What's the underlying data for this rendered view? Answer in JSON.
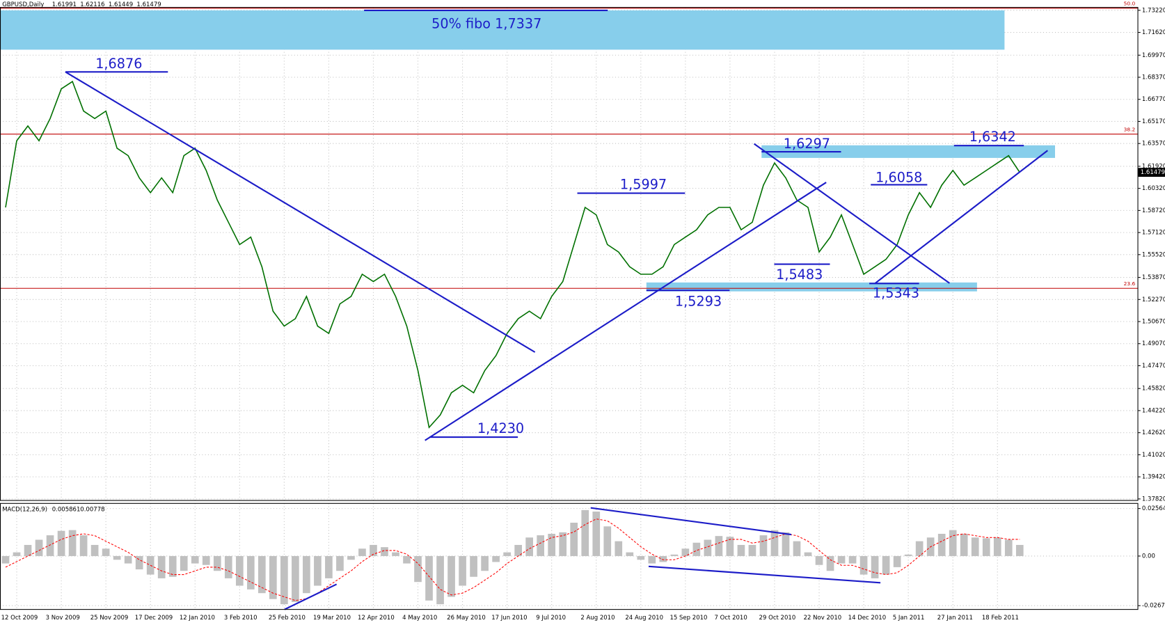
{
  "header": {
    "symbol": "GBPUSD,Daily",
    "ohlc": [
      1.61991,
      1.62116,
      1.61449,
      1.61479
    ]
  },
  "chart_data": [
    {
      "type": "line",
      "categories": [
        null,
        "12 Oct 2009",
        null,
        null,
        null,
        "3 Nov 2009",
        null,
        null,
        null,
        "25 Nov 2009",
        null,
        null,
        null,
        "17 Dec 2009",
        null,
        null,
        null,
        "12 Jan 2010",
        null,
        null,
        null,
        "3 Feb 2010",
        null,
        null,
        null,
        "25 Feb 2010",
        null,
        null,
        null,
        "19 Mar 2010",
        null,
        null,
        null,
        "12 Apr 2010",
        null,
        null,
        null,
        "4 May 2010",
        null,
        null,
        null,
        "26 May 2010",
        null,
        null,
        null,
        "17 Jun 2010",
        null,
        null,
        null,
        "9 Jul 2010",
        null,
        null,
        null,
        "2 Aug 2010",
        null,
        null,
        null,
        "24 Aug 2010",
        null,
        null,
        null,
        "15 Sep 2010",
        null,
        null,
        null,
        "7 Oct 2010",
        null,
        null,
        null,
        "29 Oct 2010",
        null,
        null,
        null,
        "22 Nov 2010",
        null,
        null,
        null,
        "14 Dec 2010",
        null,
        null,
        null,
        "5 Jan 2011",
        null,
        null,
        null,
        "27 Jan 2011",
        null,
        null,
        null,
        "18 Feb 2011",
        null,
        null
      ],
      "values": [
        1.5894,
        1.6377,
        1.6484,
        1.6377,
        1.6538,
        1.6753,
        1.6806,
        1.6592,
        1.6538,
        1.6592,
        1.6323,
        1.6269,
        1.6108,
        1.6001,
        1.6108,
        1.6001,
        1.6269,
        1.6323,
        1.6162,
        1.5947,
        1.5786,
        1.5625,
        1.5679,
        1.5464,
        1.5142,
        1.5034,
        1.5088,
        1.5249,
        1.5034,
        1.4981,
        1.5195,
        1.5249,
        1.541,
        1.5357,
        1.541,
        1.5249,
        1.5034,
        1.4712,
        1.43,
        1.439,
        1.4551,
        1.4605,
        1.4551,
        1.4712,
        1.482,
        1.4981,
        1.5088,
        1.5142,
        1.5088,
        1.5249,
        1.5357,
        1.5625,
        1.5894,
        1.584,
        1.5625,
        1.5571,
        1.5464,
        1.541,
        1.541,
        1.5464,
        1.5625,
        1.5679,
        1.5732,
        1.584,
        1.5894,
        1.5894,
        1.5732,
        1.5786,
        1.6055,
        1.6216,
        1.6108,
        1.5947,
        1.5894,
        1.5571,
        1.5679,
        1.584,
        1.5625,
        1.541,
        1.5464,
        1.5518,
        1.5625,
        1.584,
        1.6001,
        1.5894,
        1.6055,
        1.6162,
        1.6055,
        1.6108,
        1.6162,
        1.6216,
        1.6269,
        1.6148
      ],
      "color": "#007000",
      "ylim": [
        1.3771,
        1.7343
      ],
      "yticks": [
        {
          "value": 1.7322,
          "label": "1.73220"
        },
        {
          "value": 1.7162,
          "label": "1.71620"
        },
        {
          "value": 1.6997,
          "label": "1.69970"
        },
        {
          "value": 1.6837,
          "label": "1.68370"
        },
        {
          "value": 1.6677,
          "label": "1.66770"
        },
        {
          "value": 1.6517,
          "label": "1.65170"
        },
        {
          "value": 1.6357,
          "label": "1.63570"
        },
        {
          "value": 1.6192,
          "label": "1.61920"
        },
        {
          "value": 1.6032,
          "label": "1.60320"
        },
        {
          "value": 1.5872,
          "label": "1.58720"
        },
        {
          "value": 1.5712,
          "label": "1.57120"
        },
        {
          "value": 1.5552,
          "label": "1.55520"
        },
        {
          "value": 1.5387,
          "label": "1.53870"
        },
        {
          "value": 1.5227,
          "label": "1.52270"
        },
        {
          "value": 1.5067,
          "label": "1.50670"
        },
        {
          "value": 1.4907,
          "label": "1.49070"
        },
        {
          "value": 1.4747,
          "label": "1.47470"
        },
        {
          "value": 1.4582,
          "label": "1.45820"
        },
        {
          "value": 1.4422,
          "label": "1.44220"
        },
        {
          "value": 1.4262,
          "label": "1.42620"
        },
        {
          "value": 1.4102,
          "label": "1.41020"
        },
        {
          "value": 1.3942,
          "label": "1.39420"
        },
        {
          "value": 1.3782,
          "label": "1.37820"
        }
      ],
      "grid": true,
      "fibo_levels": [
        {
          "label": "50.0",
          "value": 1.7337
        },
        {
          "label": "38.2",
          "value": 1.6425
        },
        {
          "label": "23.6",
          "value": 1.5308
        }
      ],
      "fibo_color": "#c00000",
      "price_levels": [
        {
          "value": 1.6876,
          "label": "1,6876"
        },
        {
          "value": 1.5997,
          "label": "1,5997"
        },
        {
          "value": 1.6297,
          "label": "1,6297"
        },
        {
          "value": 1.6058,
          "label": "1,6058"
        },
        {
          "value": 1.6342,
          "label": "1,6342"
        },
        {
          "value": 1.423,
          "label": "1,4230"
        },
        {
          "value": 1.5293,
          "label": "1,5293"
        },
        {
          "value": 1.5483,
          "label": "1,5483"
        },
        {
          "value": 1.5343,
          "label": "1,5343"
        }
      ],
      "annotation": "50% fibo 1,7337"
    },
    {
      "type": "macd",
      "title": "MACD(12,26,9)",
      "readout": [
        0.005861,
        0.00778
      ],
      "values": [
        -0.004,
        0.002,
        0.006,
        0.0088,
        0.0112,
        0.0136,
        0.014,
        0.0112,
        0.006,
        0.004,
        -0.002,
        -0.004,
        -0.0072,
        -0.01,
        -0.012,
        -0.0112,
        -0.008,
        -0.004,
        -0.0048,
        -0.008,
        -0.012,
        -0.016,
        -0.018,
        -0.02,
        -0.0232,
        -0.026,
        -0.0248,
        -0.02,
        -0.016,
        -0.012,
        -0.008,
        -0.002,
        0.004,
        0.006,
        0.0048,
        0.002,
        -0.004,
        -0.014,
        -0.024,
        -0.026,
        -0.022,
        -0.016,
        -0.0112,
        -0.008,
        -0.0032,
        0.002,
        0.006,
        0.01,
        0.0112,
        0.012,
        0.0128,
        0.018,
        0.0248,
        0.024,
        0.016,
        0.008,
        0.002,
        -0.002,
        -0.004,
        -0.0032,
        0.0008,
        0.004,
        0.0072,
        0.0088,
        0.0108,
        0.0104,
        0.006,
        0.006,
        0.0112,
        0.014,
        0.0128,
        0.008,
        0.002,
        -0.0048,
        -0.008,
        -0.004,
        -0.004,
        -0.01,
        -0.012,
        -0.01,
        -0.006,
        0.0008,
        0.008,
        0.01,
        0.012,
        0.014,
        0.012,
        0.01,
        0.0096,
        0.01,
        0.0088,
        0.006
      ],
      "signal": [
        -0.006,
        -0.003,
        0.0,
        0.003,
        0.006,
        0.009,
        0.011,
        0.012,
        0.011,
        0.008,
        0.005,
        0.002,
        -0.002,
        -0.005,
        -0.008,
        -0.01,
        -0.01,
        -0.008,
        -0.006,
        -0.006,
        -0.008,
        -0.011,
        -0.014,
        -0.017,
        -0.02,
        -0.022,
        -0.024,
        -0.023,
        -0.02,
        -0.016,
        -0.012,
        -0.008,
        -0.003,
        0.001,
        0.003,
        0.003,
        0.001,
        -0.004,
        -0.011,
        -0.018,
        -0.021,
        -0.02,
        -0.017,
        -0.013,
        -0.009,
        -0.004,
        0.0,
        0.004,
        0.007,
        0.01,
        0.011,
        0.013,
        0.017,
        0.02,
        0.019,
        0.015,
        0.01,
        0.005,
        0.001,
        -0.002,
        -0.002,
        0.0,
        0.003,
        0.005,
        0.007,
        0.009,
        0.009,
        0.007,
        0.008,
        0.01,
        0.012,
        0.011,
        0.008,
        0.003,
        -0.002,
        -0.005,
        -0.005,
        -0.007,
        -0.009,
        -0.01,
        -0.009,
        -0.005,
        0.0,
        0.005,
        0.008,
        0.011,
        0.012,
        0.011,
        0.01,
        0.01,
        0.009,
        0.009
      ],
      "color": "#c0c0c0",
      "signal_color": "#ff0000",
      "ylim": [
        -0.0288,
        0.0284
      ],
      "yticks": [
        0.025642,
        {
          "value": 0,
          "label": "0.00"
        },
        -0.02676
      ]
    }
  ]
}
